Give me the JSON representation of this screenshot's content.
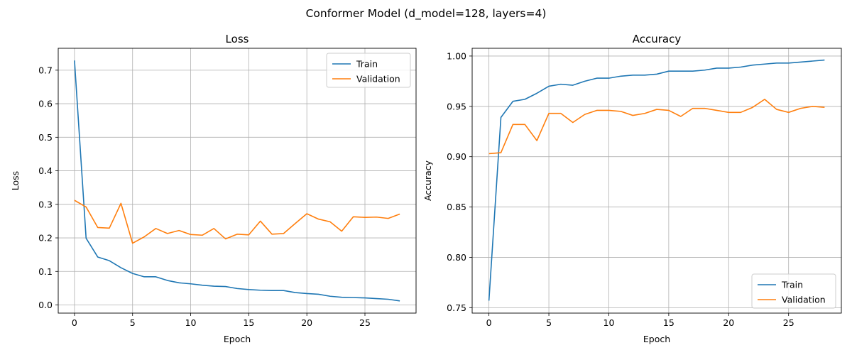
{
  "figure_title": "Conformer Model (d_model=128, layers=4)",
  "colors": {
    "train": "#1f77b4",
    "validation": "#ff7f0e",
    "grid": "#b0b0b0"
  },
  "chart_data": [
    {
      "type": "line",
      "title": "Loss",
      "xlabel": "Epoch",
      "ylabel": "Loss",
      "xlim": [
        -1.4,
        29.4
      ],
      "ylim": [
        -0.0243,
        0.7653
      ],
      "xticks": [
        0,
        5,
        10,
        15,
        20,
        25
      ],
      "xtick_labels": [
        "0",
        "5",
        "10",
        "15",
        "20",
        "25"
      ],
      "yticks": [
        0.0,
        0.1,
        0.2,
        0.3,
        0.4,
        0.5,
        0.6,
        0.7
      ],
      "ytick_labels": [
        "0.0",
        "0.1",
        "0.2",
        "0.3",
        "0.4",
        "0.5",
        "0.6",
        "0.7"
      ],
      "grid": true,
      "legend_position": "upper right",
      "series": [
        {
          "name": "Train",
          "color": "#1f77b4",
          "x": [
            0,
            1,
            2,
            3,
            4,
            5,
            6,
            7,
            8,
            9,
            10,
            11,
            12,
            13,
            14,
            15,
            16,
            17,
            18,
            19,
            20,
            21,
            22,
            23,
            24,
            25,
            26,
            27,
            28
          ],
          "y": [
            0.729,
            0.199,
            0.143,
            0.132,
            0.111,
            0.094,
            0.084,
            0.084,
            0.073,
            0.066,
            0.063,
            0.059,
            0.056,
            0.055,
            0.049,
            0.046,
            0.044,
            0.043,
            0.043,
            0.037,
            0.034,
            0.032,
            0.026,
            0.023,
            0.022,
            0.021,
            0.019,
            0.017,
            0.012
          ]
        },
        {
          "name": "Validation",
          "color": "#ff7f0e",
          "x": [
            0,
            1,
            2,
            3,
            4,
            5,
            6,
            7,
            8,
            9,
            10,
            11,
            12,
            13,
            14,
            15,
            16,
            17,
            18,
            19,
            20,
            21,
            22,
            23,
            24,
            25,
            26,
            27,
            28
          ],
          "y": [
            0.312,
            0.292,
            0.231,
            0.229,
            0.303,
            0.184,
            0.203,
            0.228,
            0.213,
            0.222,
            0.21,
            0.208,
            0.228,
            0.197,
            0.211,
            0.209,
            0.25,
            0.211,
            0.213,
            0.243,
            0.272,
            0.256,
            0.248,
            0.22,
            0.263,
            0.261,
            0.262,
            0.258,
            0.271
          ]
        }
      ]
    },
    {
      "type": "line",
      "title": "Accuracy",
      "xlabel": "Epoch",
      "ylabel": "Accuracy",
      "xlim": [
        -1.4,
        29.4
      ],
      "ylim": [
        0.7446,
        1.0077
      ],
      "xticks": [
        0,
        5,
        10,
        15,
        20,
        25
      ],
      "xtick_labels": [
        "0",
        "5",
        "10",
        "15",
        "20",
        "25"
      ],
      "yticks": [
        0.75,
        0.8,
        0.85,
        0.9,
        0.95,
        1.0
      ],
      "ytick_labels": [
        "0.75",
        "0.80",
        "0.85",
        "0.90",
        "0.95",
        "1.00"
      ],
      "grid": true,
      "legend_position": "lower right",
      "series": [
        {
          "name": "Train",
          "color": "#1f77b4",
          "x": [
            0,
            1,
            2,
            3,
            4,
            5,
            6,
            7,
            8,
            9,
            10,
            11,
            12,
            13,
            14,
            15,
            16,
            17,
            18,
            19,
            20,
            21,
            22,
            23,
            24,
            25,
            26,
            27,
            28
          ],
          "y": [
            0.757,
            0.939,
            0.955,
            0.957,
            0.963,
            0.97,
            0.972,
            0.971,
            0.975,
            0.978,
            0.978,
            0.98,
            0.981,
            0.981,
            0.982,
            0.985,
            0.985,
            0.985,
            0.986,
            0.988,
            0.988,
            0.989,
            0.991,
            0.992,
            0.993,
            0.993,
            0.994,
            0.995,
            0.996
          ]
        },
        {
          "name": "Validation",
          "color": "#ff7f0e",
          "x": [
            0,
            1,
            2,
            3,
            4,
            5,
            6,
            7,
            8,
            9,
            10,
            11,
            12,
            13,
            14,
            15,
            16,
            17,
            18,
            19,
            20,
            21,
            22,
            23,
            24,
            25,
            26,
            27,
            28
          ],
          "y": [
            0.903,
            0.904,
            0.932,
            0.932,
            0.916,
            0.943,
            0.943,
            0.934,
            0.942,
            0.946,
            0.946,
            0.945,
            0.941,
            0.943,
            0.947,
            0.946,
            0.94,
            0.948,
            0.948,
            0.946,
            0.944,
            0.944,
            0.949,
            0.957,
            0.947,
            0.944,
            0.948,
            0.95,
            0.949
          ]
        }
      ]
    }
  ]
}
